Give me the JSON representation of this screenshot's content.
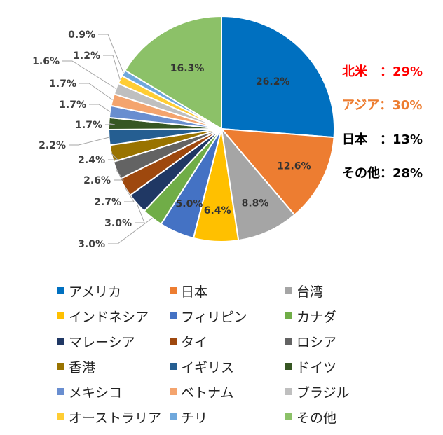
{
  "chart_data": {
    "type": "pie",
    "slices": [
      {
        "name": "アメリカ",
        "value": 26.2,
        "label": "26.2%",
        "color": "#0070C0"
      },
      {
        "name": "日本",
        "value": 12.6,
        "label": "12.6%",
        "color": "#ED7D31"
      },
      {
        "name": "台湾",
        "value": 8.8,
        "label": "8.8%",
        "color": "#A5A5A5"
      },
      {
        "name": "インドネシア",
        "value": 6.4,
        "label": "6.4%",
        "color": "#FFC000"
      },
      {
        "name": "フィリピン",
        "value": 5.0,
        "label": "5.0%",
        "color": "#4472C4"
      },
      {
        "name": "カナダ",
        "value": 3.0,
        "label": "3.0%",
        "color": "#70AD47"
      },
      {
        "name": "マレーシア",
        "value": 3.0,
        "label": "3.0%",
        "color": "#203864"
      },
      {
        "name": "タイ",
        "value": 2.7,
        "label": "2.7%",
        "color": "#9E480E"
      },
      {
        "name": "ロシア",
        "value": 2.6,
        "label": "2.6%",
        "color": "#636363"
      },
      {
        "name": "香港",
        "value": 2.4,
        "label": "2.4%",
        "color": "#997300"
      },
      {
        "name": "イギリス",
        "value": 2.2,
        "label": "2.2%",
        "color": "#255E91"
      },
      {
        "name": "ドイツ",
        "value": 1.7,
        "label": "1.7%",
        "color": "#375623"
      },
      {
        "name": "メキシコ",
        "value": 1.7,
        "label": "1.7%",
        "color": "#698ED0"
      },
      {
        "name": "ベトナム",
        "value": 1.7,
        "label": "1.7%",
        "color": "#F4A46E"
      },
      {
        "name": "ブラジル",
        "value": 1.6,
        "label": "1.6%",
        "color": "#BFBFBF"
      },
      {
        "name": "オーストラリア",
        "value": 1.2,
        "label": "1.2%",
        "color": "#FFCD33"
      },
      {
        "name": "チリ",
        "value": 0.9,
        "label": "0.9%",
        "color": "#6FA8DC"
      },
      {
        "name": "その他",
        "value": 16.3,
        "label": "16.3%",
        "color": "#8CC168"
      }
    ],
    "start_angle_deg": 0,
    "direction": "clockwise",
    "legend_position": "bottom"
  },
  "summary": [
    {
      "text": "北米　：29%",
      "color": "#FF0000"
    },
    {
      "text": "アジア：30%",
      "color": "#ED7D31"
    },
    {
      "text": "日本　：13%",
      "color": "#000000"
    },
    {
      "text": "その他：28%",
      "color": "#000000"
    }
  ]
}
